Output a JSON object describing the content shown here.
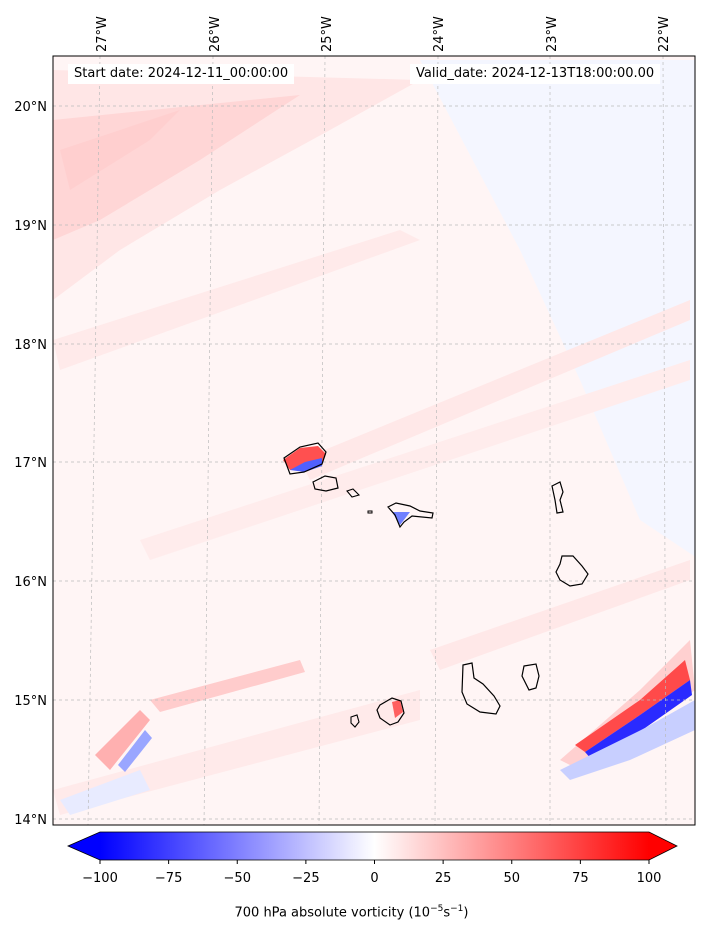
{
  "header": {
    "start_date": "Start date: 2024-12-11_00:00:00",
    "valid_date": "Valid_date: 2024-12-13T18:00:00.00"
  },
  "axes": {
    "lon_labels": [
      "27°W",
      "26°W",
      "25°W",
      "24°W",
      "23°W",
      "22°W"
    ],
    "lat_labels": [
      "20°N",
      "19°N",
      "18°N",
      "17°N",
      "16°N",
      "15°N",
      "14°N"
    ]
  },
  "colorbar": {
    "min": -100,
    "max": 100,
    "tick_values": [
      -100,
      -75,
      -50,
      -25,
      0,
      25,
      50,
      75,
      100
    ],
    "tick_labels": [
      "−100",
      "−75",
      "−50",
      "−25",
      "0",
      "25",
      "50",
      "75",
      "100"
    ],
    "label_prefix": "700 hPa absolute vorticity (10",
    "label_exp1": "−5",
    "label_mid": "s",
    "label_exp2": "−1",
    "label_suffix": ")",
    "low_color": "#0000ff",
    "high_color": "#ff0000"
  },
  "field_colors": {
    "positive_light": "#ffe4e4",
    "positive_mid": "#ffb3b3",
    "positive_strong": "#ff3030",
    "negative_light": "#eef0ff",
    "negative_mid": "#b0b8ff",
    "negative_strong": "#2020ff",
    "background": "#fff6f6"
  }
}
